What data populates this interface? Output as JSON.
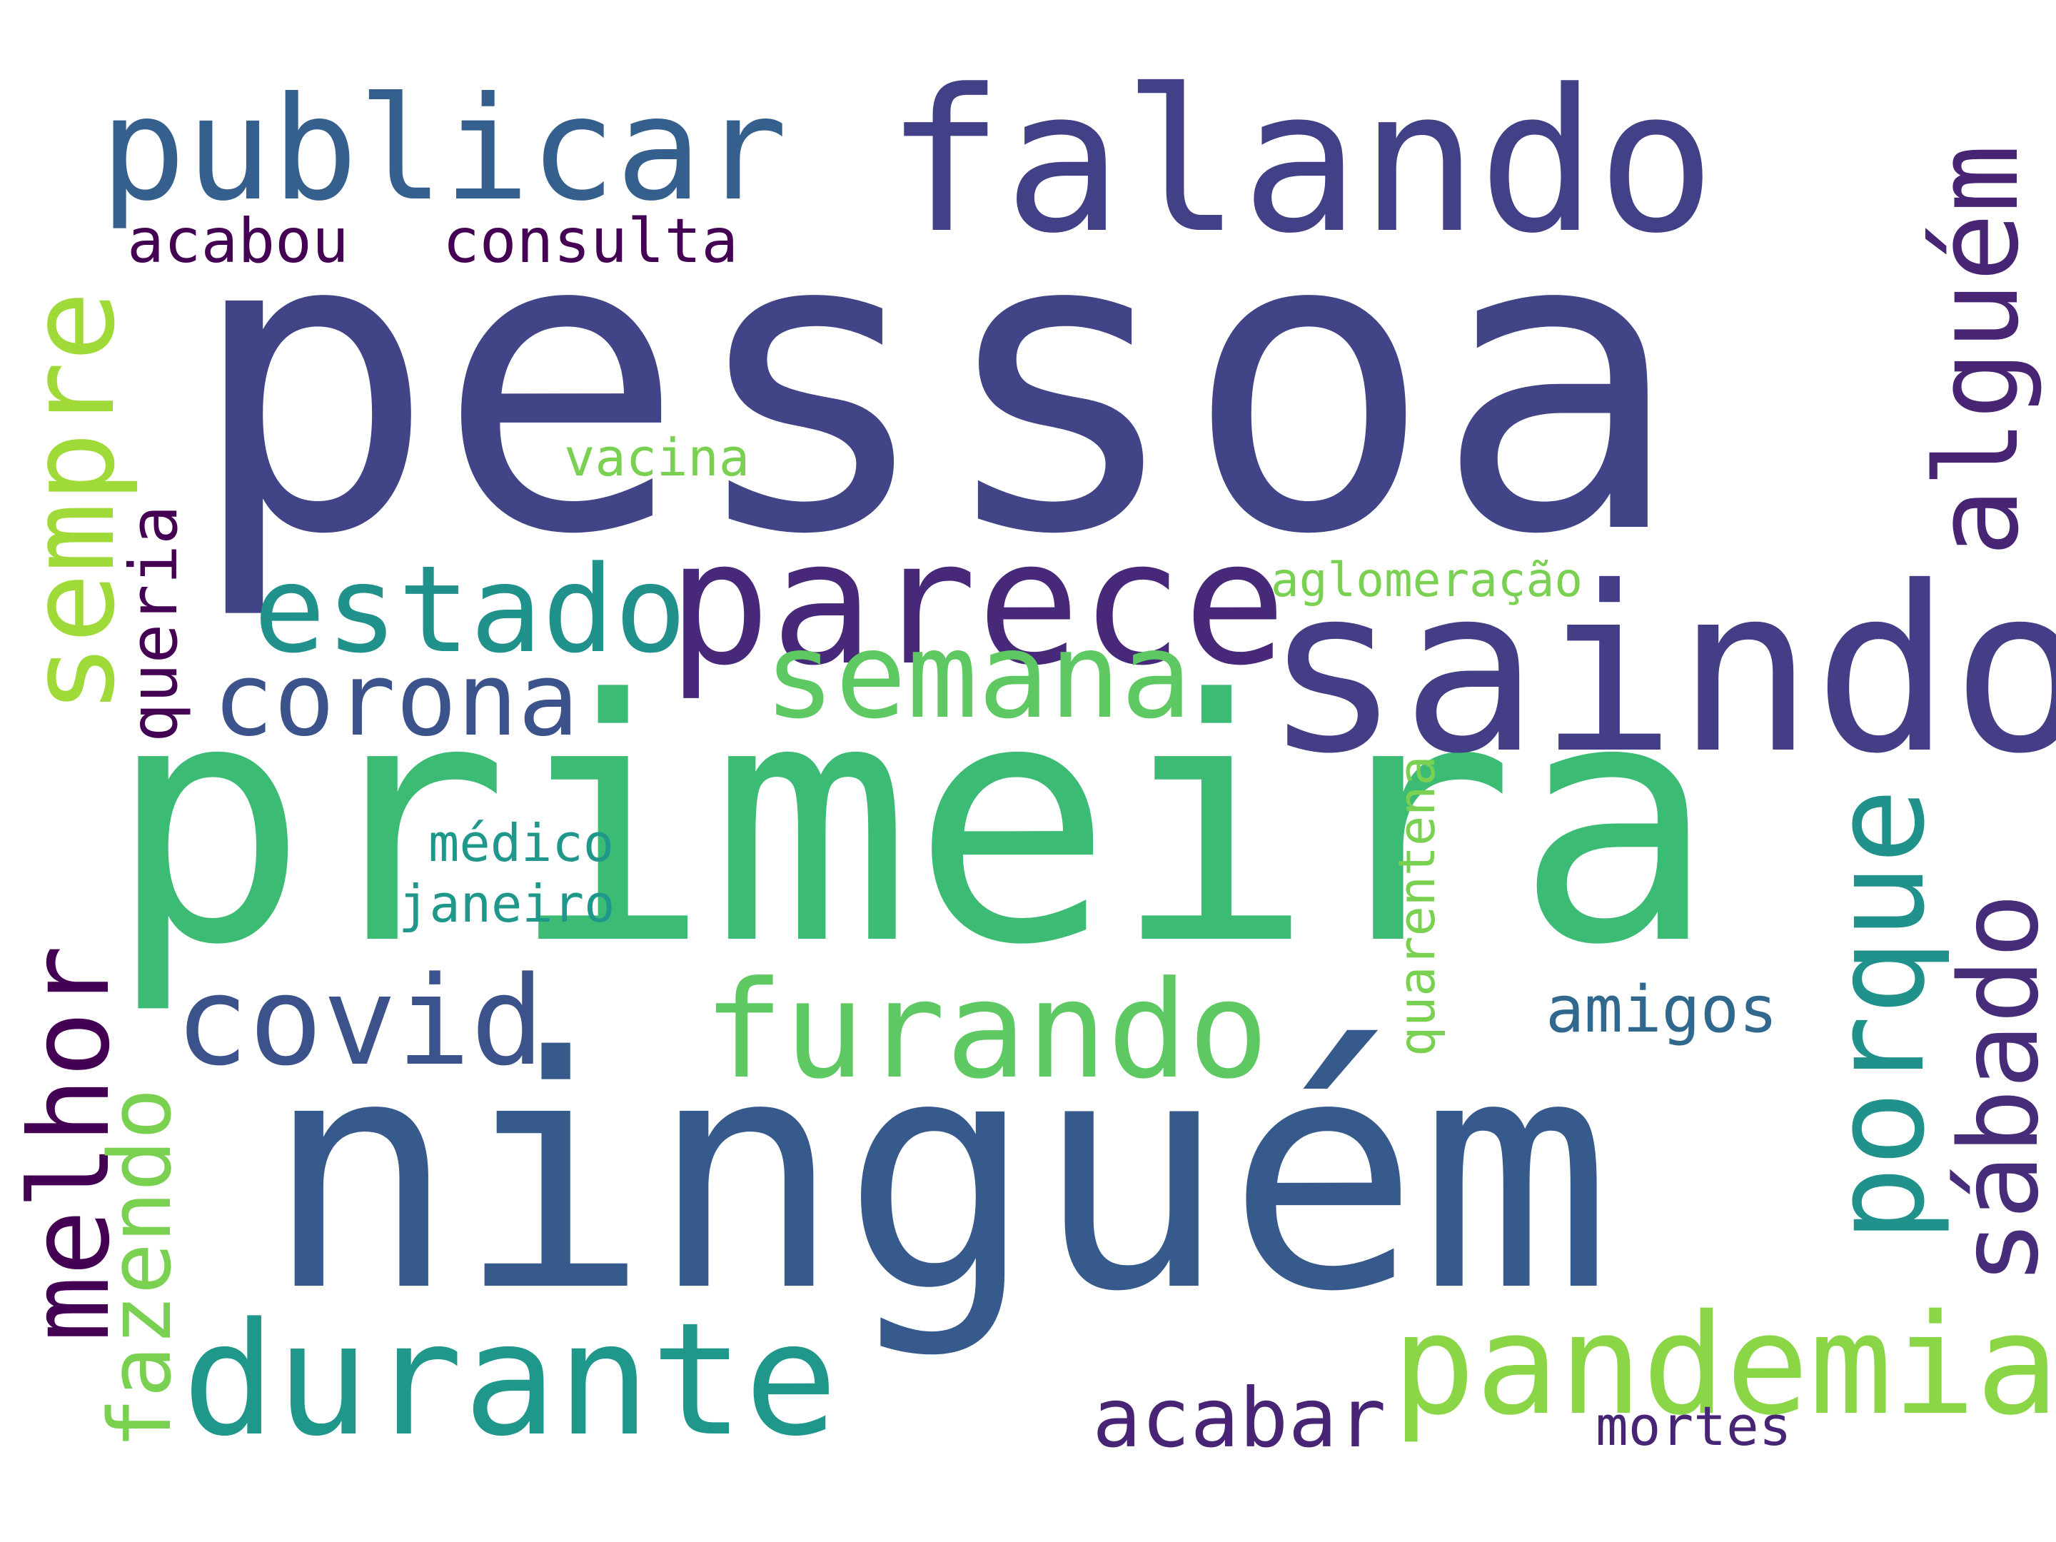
{
  "words": {
    "pessoa": {
      "text": "pessoa",
      "color": "#414487"
    },
    "primeira": {
      "text": "primeira",
      "color": "#3cbb75"
    },
    "ninguem": {
      "text": "ninguém",
      "color": "#375a8c"
    },
    "publicar": {
      "text": "publicar",
      "color": "#355f8d"
    },
    "falando": {
      "text": "falando",
      "color": "#424086"
    },
    "saindo": {
      "text": "saindo",
      "color": "#433e85"
    },
    "parece": {
      "text": "parece",
      "color": "#482979"
    },
    "durante": {
      "text": "durante",
      "color": "#1f988b"
    },
    "pandemia": {
      "text": "pandemia",
      "color": "#8bd646"
    },
    "furando": {
      "text": "furando",
      "color": "#5ec962"
    },
    "semana": {
      "text": "semana",
      "color": "#5ec962"
    },
    "estado": {
      "text": "estado",
      "color": "#21918c"
    },
    "corona": {
      "text": "corona",
      "color": "#3b528b"
    },
    "covid": {
      "text": "covid",
      "color": "#3b528b"
    },
    "acabou": {
      "text": "acabou",
      "color": "#440154"
    },
    "consulta": {
      "text": "consulta",
      "color": "#440154"
    },
    "vacina": {
      "text": "vacina",
      "color": "#7ad151"
    },
    "aglomeracao": {
      "text": "aglomeração",
      "color": "#7ad151"
    },
    "medico": {
      "text": "médico",
      "color": "#1f988b"
    },
    "janeiro": {
      "text": "janeiro",
      "color": "#1f988b"
    },
    "amigos": {
      "text": "amigos",
      "color": "#31688e"
    },
    "acabar": {
      "text": "acabar",
      "color": "#482475"
    },
    "mortes": {
      "text": "mortes",
      "color": "#482475"
    },
    "sempre": {
      "text": "sempre",
      "color": "#a0da39"
    },
    "alguem": {
      "text": "alguém",
      "color": "#482475"
    },
    "queria": {
      "text": "queria",
      "color": "#440154"
    },
    "melhor": {
      "text": "melhor",
      "color": "#440154"
    },
    "fazendo": {
      "text": "fazendo",
      "color": "#7ad151"
    },
    "porque": {
      "text": "porque",
      "color": "#21918c"
    },
    "sabado": {
      "text": "sábado",
      "color": "#472c7a"
    },
    "quarentena": {
      "text": "quarentena",
      "color": "#7ad151"
    }
  }
}
